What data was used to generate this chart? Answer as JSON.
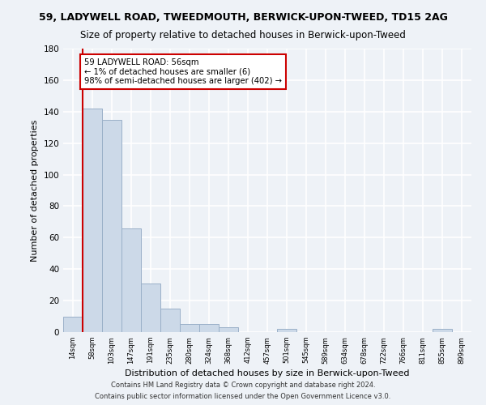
{
  "title": "59, LADYWELL ROAD, TWEEDMOUTH, BERWICK-UPON-TWEED, TD15 2AG",
  "subtitle": "Size of property relative to detached houses in Berwick-upon-Tweed",
  "xlabel": "Distribution of detached houses by size in Berwick-upon-Tweed",
  "ylabel": "Number of detached properties",
  "bin_labels": [
    "14sqm",
    "58sqm",
    "103sqm",
    "147sqm",
    "191sqm",
    "235sqm",
    "280sqm",
    "324sqm",
    "368sqm",
    "412sqm",
    "457sqm",
    "501sqm",
    "545sqm",
    "589sqm",
    "634sqm",
    "678sqm",
    "722sqm",
    "766sqm",
    "811sqm",
    "855sqm",
    "899sqm"
  ],
  "bar_values": [
    10,
    142,
    135,
    66,
    31,
    15,
    5,
    5,
    3,
    0,
    0,
    2,
    0,
    0,
    0,
    0,
    0,
    0,
    0,
    2,
    0
  ],
  "bar_color": "#ccd9e8",
  "bar_edgecolor": "#9ab0c8",
  "annotation_title": "59 LADYWELL ROAD: 56sqm",
  "annotation_line1": "← 1% of detached houses are smaller (6)",
  "annotation_line2": "98% of semi-detached houses are larger (402) →",
  "annotation_box_color": "#cc0000",
  "ylim": [
    0,
    180
  ],
  "yticks": [
    0,
    20,
    40,
    60,
    80,
    100,
    120,
    140,
    160,
    180
  ],
  "footer1": "Contains HM Land Registry data © Crown copyright and database right 2024.",
  "footer2": "Contains public sector information licensed under the Open Government Licence v3.0.",
  "bg_color": "#eef2f7",
  "grid_color": "#ffffff",
  "title_fontsize": 9,
  "subtitle_fontsize": 8.5,
  "ylabel_fontsize": 8,
  "xlabel_fontsize": 8
}
